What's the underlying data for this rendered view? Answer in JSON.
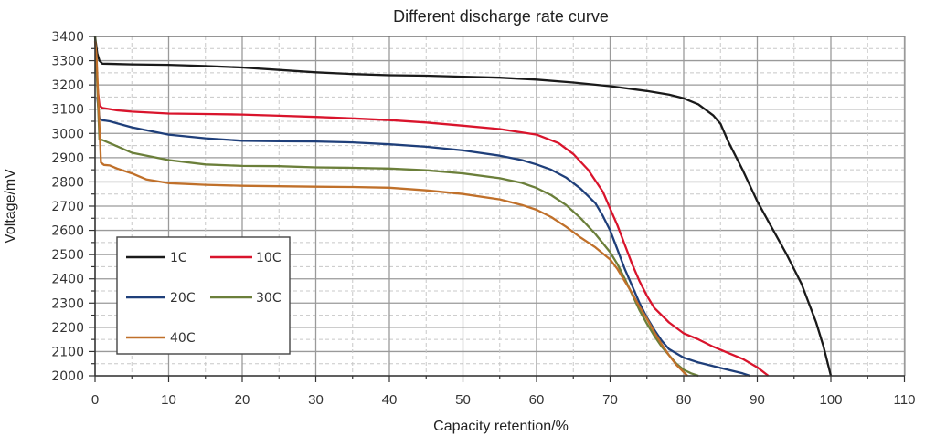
{
  "chart_data": {
    "type": "line",
    "title": "Different discharge rate curve",
    "xlabel": "Capacity retention/%",
    "ylabel": "Voltage/mV",
    "xlim": [
      0,
      110
    ],
    "ylim": [
      2000,
      3400
    ],
    "x_ticks": [
      "0",
      "10",
      "20",
      "30",
      "40",
      "50",
      "60",
      "70",
      "80",
      "90",
      "100",
      "110"
    ],
    "y_ticks": [
      "2000",
      "2100",
      "2200",
      "2300",
      "2400",
      "2500",
      "2600",
      "2700",
      "2800",
      "2900",
      "3000",
      "3100",
      "3200",
      "3300",
      "3400"
    ],
    "grid": true,
    "legend_position": "bottom-left",
    "series": [
      {
        "name": "1C",
        "color": "#1a1a1a",
        "x": [
          0,
          0.3,
          0.6,
          1,
          5,
          10,
          15,
          20,
          25,
          30,
          35,
          40,
          45,
          50,
          55,
          60,
          65,
          70,
          75,
          78,
          80,
          82,
          84,
          85,
          86,
          88,
          90,
          92,
          94,
          96,
          98,
          99,
          100
        ],
        "y": [
          3400,
          3330,
          3300,
          3288,
          3285,
          3283,
          3278,
          3272,
          3262,
          3252,
          3245,
          3240,
          3238,
          3234,
          3230,
          3222,
          3210,
          3195,
          3175,
          3160,
          3145,
          3120,
          3075,
          3040,
          2970,
          2850,
          2720,
          2610,
          2500,
          2380,
          2220,
          2120,
          2000
        ]
      },
      {
        "name": "10C",
        "color": "#d9142c",
        "x": [
          0.3,
          0.6,
          1,
          3,
          5,
          10,
          15,
          20,
          25,
          30,
          35,
          40,
          45,
          50,
          55,
          60,
          63,
          65,
          67,
          69,
          70,
          71,
          72,
          73,
          74,
          75,
          76,
          78,
          80,
          82,
          84,
          86,
          88,
          90,
          91.5
        ],
        "y": [
          3200,
          3115,
          3105,
          3095,
          3090,
          3082,
          3080,
          3078,
          3073,
          3068,
          3062,
          3055,
          3045,
          3032,
          3018,
          2995,
          2960,
          2915,
          2850,
          2760,
          2690,
          2620,
          2540,
          2460,
          2390,
          2330,
          2280,
          2220,
          2175,
          2150,
          2120,
          2095,
          2070,
          2035,
          2000
        ]
      },
      {
        "name": "20C",
        "color": "#1f3f7a",
        "x": [
          0.3,
          0.6,
          1,
          2,
          5,
          10,
          15,
          20,
          25,
          30,
          35,
          40,
          45,
          50,
          55,
          58,
          60,
          62,
          64,
          66,
          68,
          69,
          70,
          71,
          72,
          73,
          74,
          75,
          76,
          77,
          78,
          80,
          82,
          84,
          86,
          88,
          89
        ],
        "y": [
          3150,
          3060,
          3055,
          3050,
          3025,
          2995,
          2980,
          2970,
          2968,
          2967,
          2963,
          2955,
          2945,
          2930,
          2908,
          2890,
          2872,
          2850,
          2818,
          2772,
          2712,
          2660,
          2600,
          2520,
          2440,
          2370,
          2300,
          2240,
          2190,
          2145,
          2110,
          2075,
          2055,
          2040,
          2025,
          2010,
          2000
        ]
      },
      {
        "name": "30C",
        "color": "#6b7f3a",
        "x": [
          0,
          0.3,
          0.6,
          1,
          2,
          5,
          10,
          15,
          20,
          25,
          30,
          35,
          40,
          45,
          50,
          55,
          58,
          60,
          62,
          64,
          66,
          68,
          70,
          71,
          72,
          73,
          74,
          75,
          76,
          77,
          78,
          79,
          80,
          81,
          82
        ],
        "y": [
          3400,
          3200,
          2975,
          2973,
          2960,
          2920,
          2890,
          2872,
          2866,
          2865,
          2860,
          2858,
          2855,
          2848,
          2835,
          2815,
          2796,
          2775,
          2745,
          2705,
          2650,
          2585,
          2510,
          2460,
          2400,
          2335,
          2270,
          2215,
          2165,
          2120,
          2085,
          2050,
          2025,
          2010,
          2000
        ]
      },
      {
        "name": "40C",
        "color": "#c0702a",
        "x": [
          0,
          0.2,
          0.5,
          0.8,
          1.2,
          2,
          3,
          5,
          7,
          10,
          15,
          20,
          25,
          30,
          35,
          40,
          45,
          50,
          55,
          58,
          60,
          62,
          64,
          66,
          68,
          70,
          71,
          72,
          73,
          74,
          75,
          76,
          77,
          78,
          79,
          80,
          80.5
        ],
        "y": [
          3380,
          3320,
          3100,
          2880,
          2870,
          2868,
          2855,
          2835,
          2810,
          2795,
          2788,
          2784,
          2782,
          2780,
          2779,
          2776,
          2765,
          2750,
          2728,
          2705,
          2685,
          2655,
          2615,
          2570,
          2530,
          2480,
          2440,
          2390,
          2340,
          2285,
          2235,
          2180,
          2130,
          2085,
          2045,
          2015,
          2000
        ]
      }
    ]
  }
}
